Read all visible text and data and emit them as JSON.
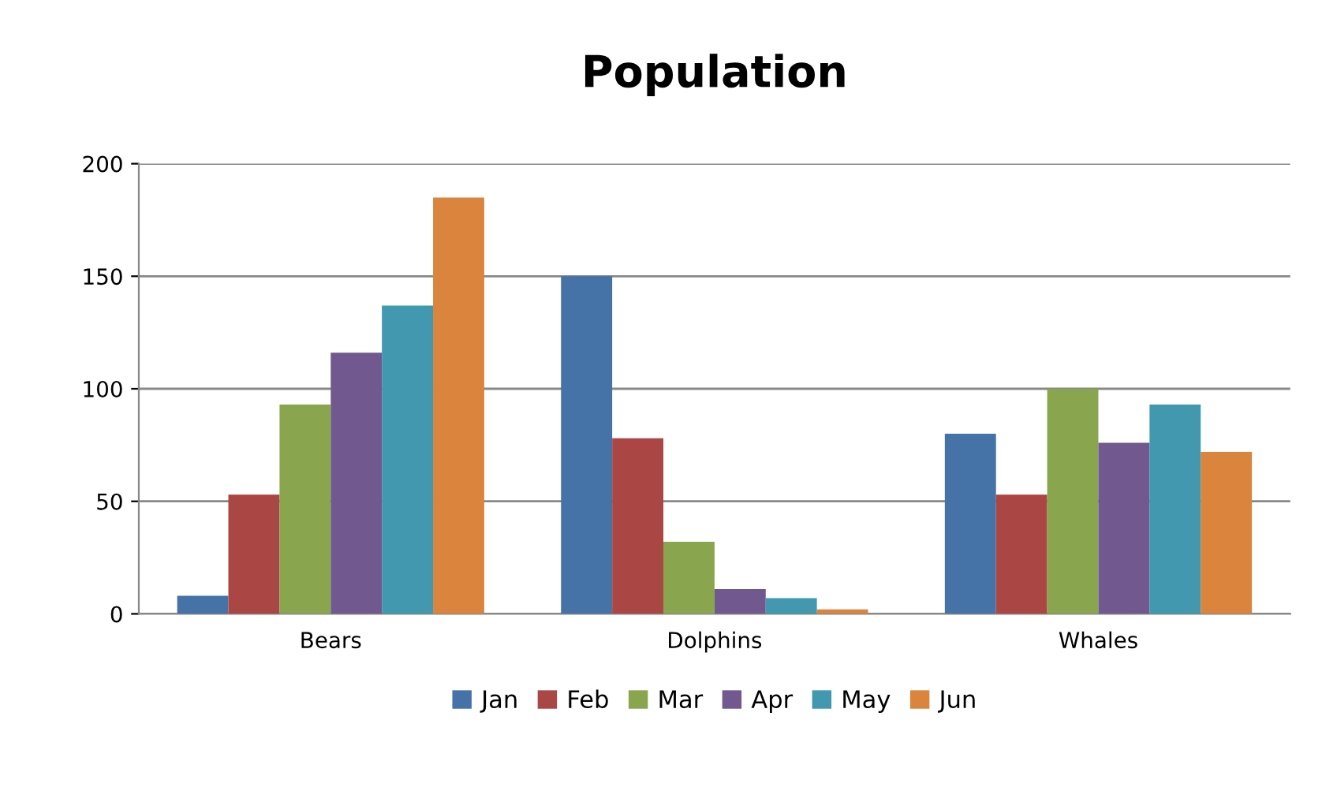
{
  "chart_data": {
    "type": "bar",
    "title": "Population",
    "categories": [
      "Bears",
      "Dolphins",
      "Whales"
    ],
    "series": [
      {
        "name": "Jan",
        "color": "#4572a7",
        "values": [
          8,
          150,
          80
        ]
      },
      {
        "name": "Feb",
        "color": "#aa4643",
        "values": [
          53,
          78,
          53
        ]
      },
      {
        "name": "Mar",
        "color": "#89a54e",
        "values": [
          93,
          32,
          100
        ]
      },
      {
        "name": "Apr",
        "color": "#71588f",
        "values": [
          116,
          11,
          76
        ]
      },
      {
        "name": "May",
        "color": "#4198af",
        "values": [
          137,
          7,
          93
        ]
      },
      {
        "name": "Jun",
        "color": "#db843d",
        "values": [
          185,
          2,
          72
        ]
      }
    ],
    "ylim": [
      0,
      200
    ],
    "yticks": [
      0,
      50,
      100,
      150,
      200
    ],
    "grid": "y",
    "legend": "bottom"
  }
}
